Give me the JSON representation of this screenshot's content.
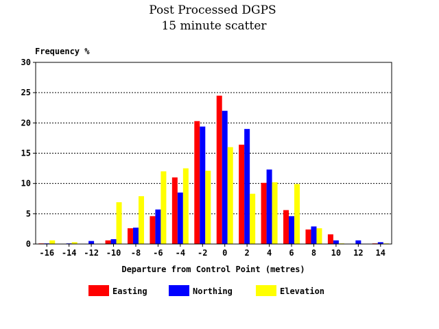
{
  "chart_data": {
    "type": "bar",
    "title": "Post Processed DGPS",
    "subtitle": "15 minute scatter",
    "ylabel": "Frequency %",
    "xlabel": "Departure from Control Point (metres)",
    "ylim": [
      0,
      30
    ],
    "yticks": [
      0,
      5,
      10,
      15,
      20,
      25,
      30
    ],
    "categories": [
      "-16",
      "-14",
      "-12",
      "-10",
      "-8",
      "-6",
      "-4",
      "-2",
      "0",
      "2",
      "4",
      "6",
      "8",
      "10",
      "12",
      "14"
    ],
    "grid": "horizontal dashed",
    "legend_position": "bottom",
    "series": [
      {
        "name": "Easting",
        "color": "#ff0000",
        "values": [
          0.1,
          0.0,
          0.0,
          0.6,
          2.6,
          4.6,
          11.0,
          20.3,
          24.5,
          16.4,
          10.1,
          5.6,
          2.4,
          1.6,
          0.0,
          0.1
        ]
      },
      {
        "name": "Northing",
        "color": "#0000ff",
        "values": [
          0.1,
          0.1,
          0.5,
          0.8,
          2.7,
          5.7,
          8.5,
          19.4,
          22.0,
          19.0,
          12.3,
          4.6,
          2.9,
          0.6,
          0.6,
          0.3
        ]
      },
      {
        "name": "Elevation",
        "color": "#ffff00",
        "values": [
          0.6,
          0.3,
          0.0,
          6.9,
          7.9,
          12.0,
          12.5,
          12.1,
          16.0,
          8.3,
          10.2,
          9.9,
          2.6,
          0.1,
          0.0,
          0.1
        ]
      }
    ]
  }
}
